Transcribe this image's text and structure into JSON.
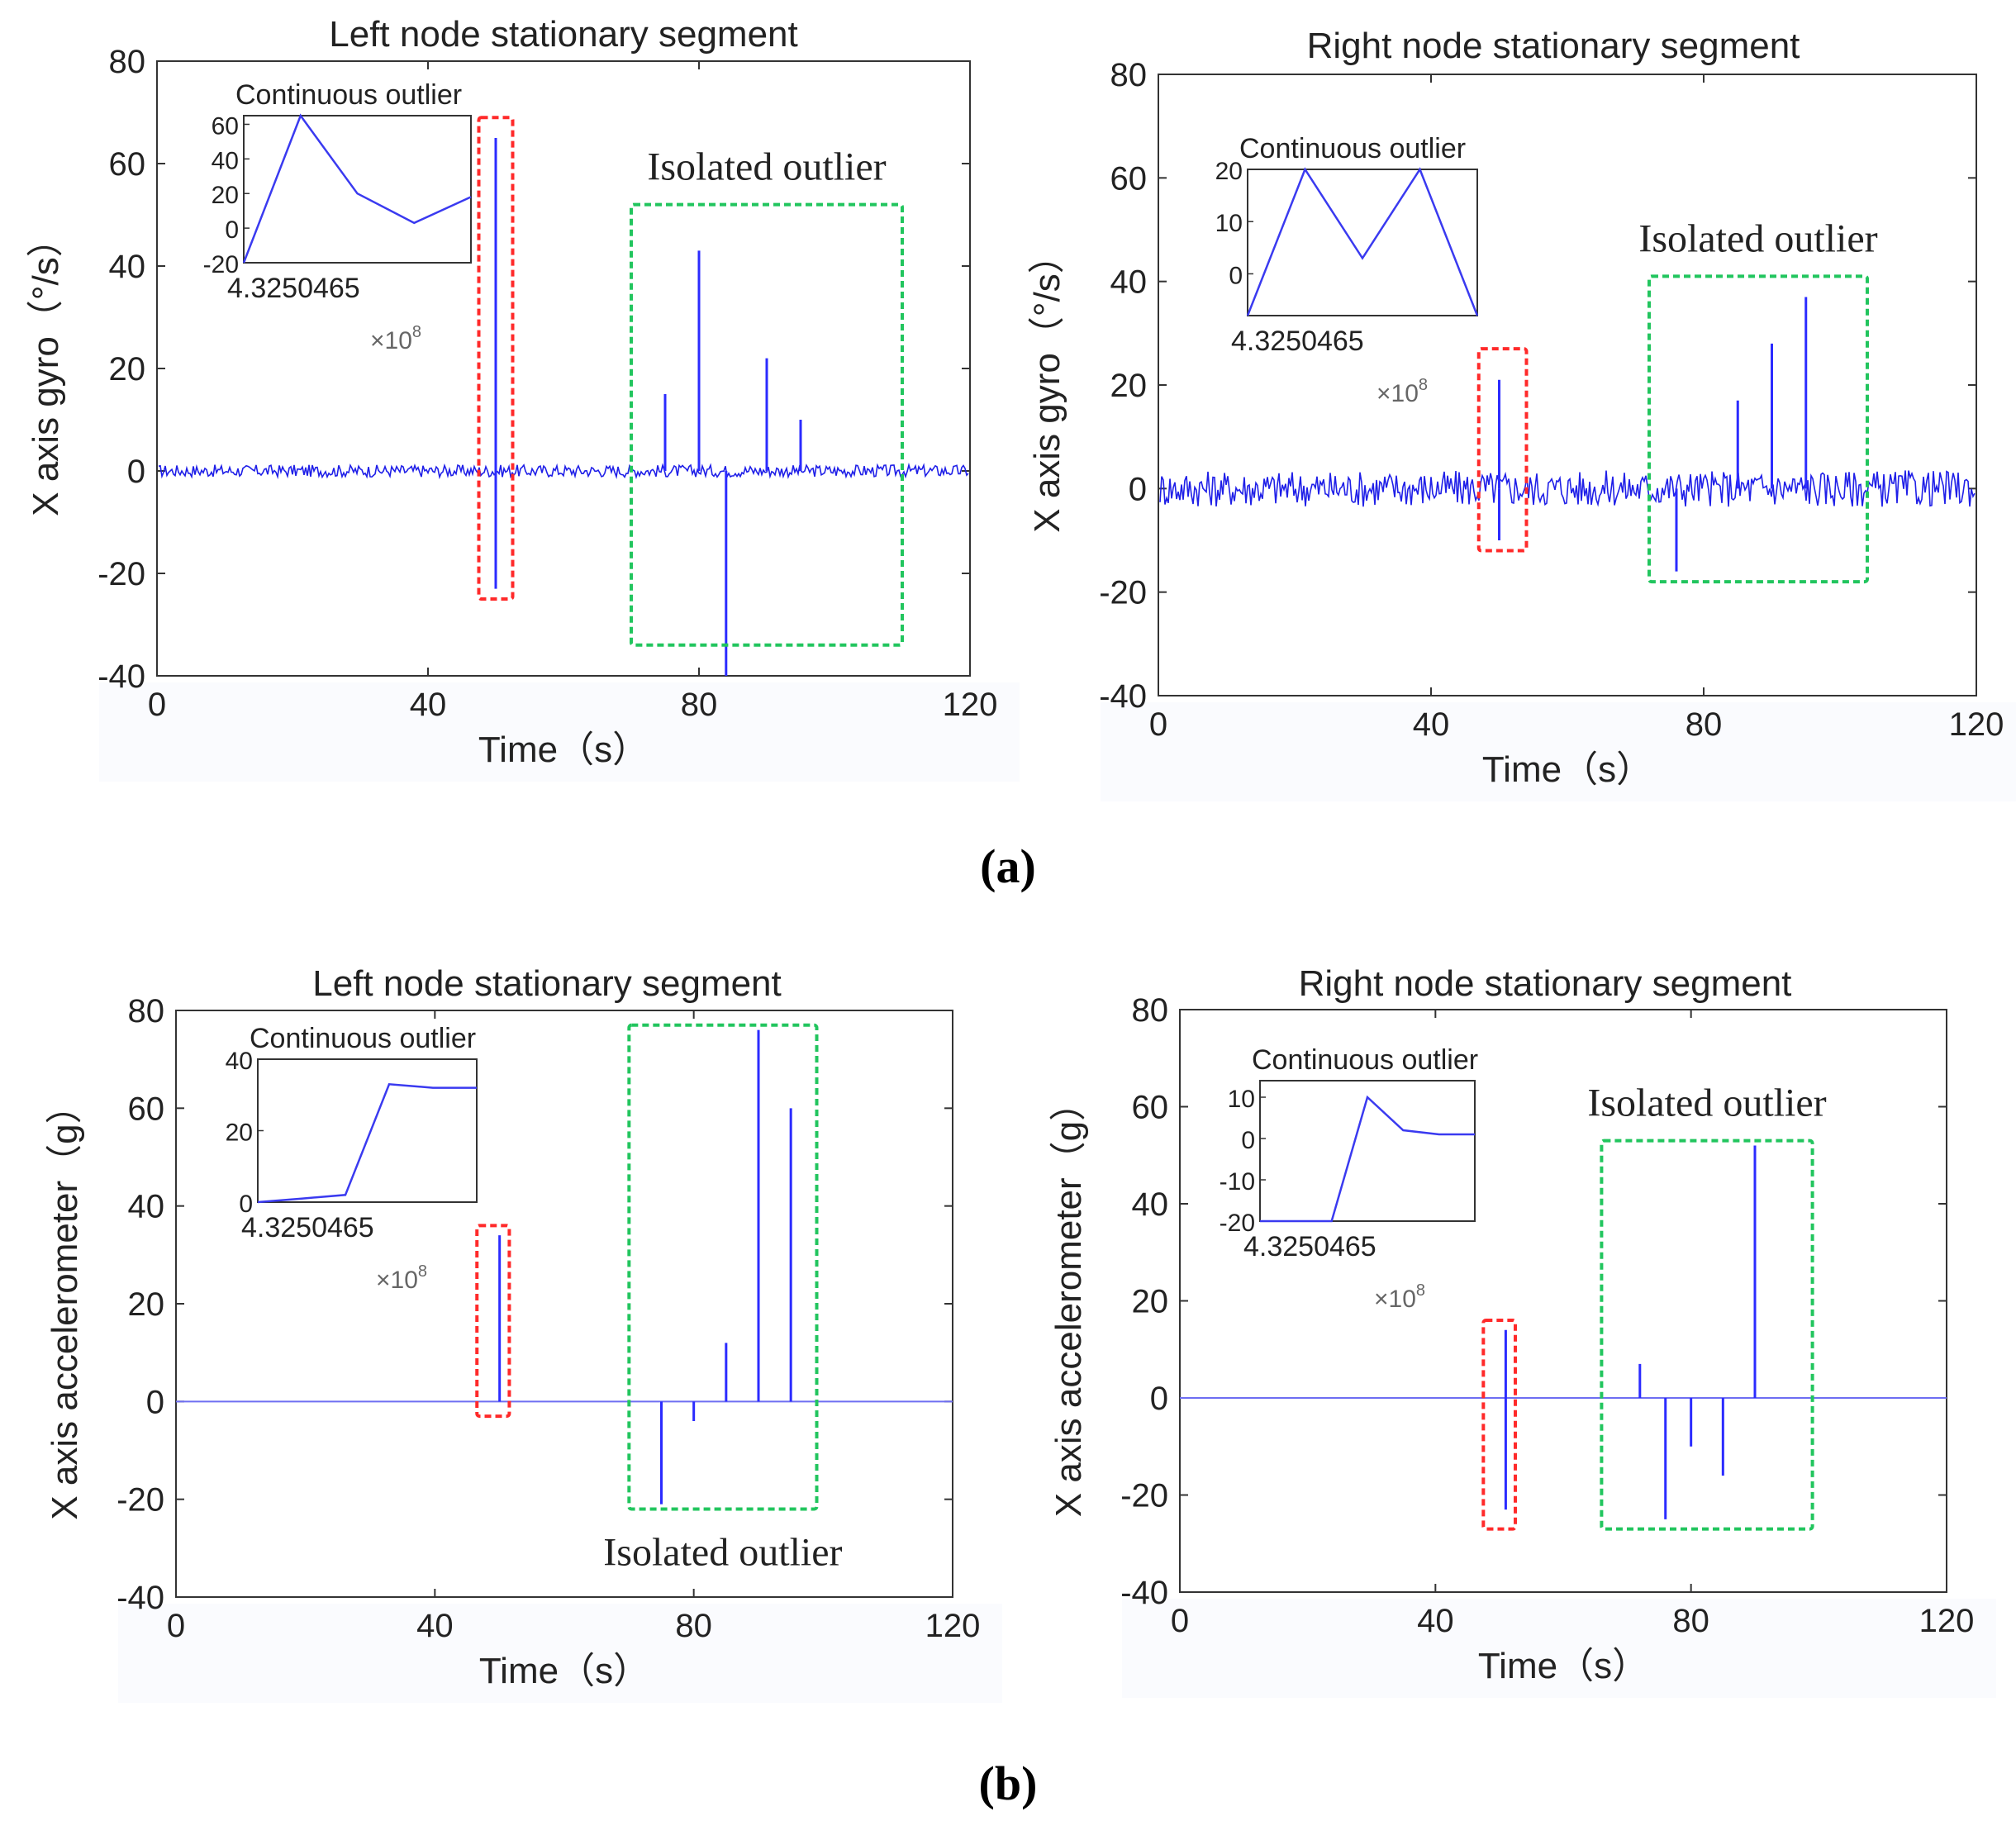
{
  "panel_labels": [
    "(a)",
    "(b)"
  ],
  "chart_data": [
    {
      "type": "line",
      "subtype": "spike-series",
      "title": "Left node stationary segment",
      "xlabel": "Time（s）",
      "ylabel": "X axis gyro（°/s）",
      "xlim": [
        0,
        120
      ],
      "ylim": [
        -40,
        80
      ],
      "xticks": [
        0,
        40,
        80,
        120
      ],
      "yticks": [
        -40,
        -20,
        0,
        20,
        40,
        60,
        80
      ],
      "series": [
        {
          "name": "X axis gyro",
          "noise_amplitude": 1.2,
          "spikes": [
            [
              50,
              65
            ],
            [
              50,
              -23
            ],
            [
              75,
              15
            ],
            [
              80,
              43
            ],
            [
              84,
              -40
            ],
            [
              90,
              22
            ],
            [
              95,
              10
            ]
          ]
        }
      ],
      "annotations": [
        {
          "label": "Isolated outlier",
          "color": "#22c55e",
          "x_range": [
            70,
            110
          ],
          "y_range": [
            -34,
            52
          ]
        },
        {
          "label": "",
          "color": "#ff2a2a",
          "x_range": [
            47.5,
            52.5
          ],
          "y_range": [
            -25,
            69
          ]
        }
      ],
      "inset": {
        "title": "Continuous outlier",
        "x_label": "4.3250465",
        "multiplier": "×10",
        "multiplier_exp": "8",
        "ylim": [
          -20,
          65
        ],
        "yticks": [
          -20,
          0,
          20,
          40,
          60
        ],
        "values": [
          -20,
          65,
          20,
          3,
          18
        ]
      }
    },
    {
      "type": "line",
      "subtype": "spike-series",
      "title": "Right node stationary segment",
      "xlabel": "Time（s）",
      "ylabel": "X axis gyro（°/s）",
      "xlim": [
        0,
        120
      ],
      "ylim": [
        -40,
        80
      ],
      "xticks": [
        0,
        40,
        80,
        120
      ],
      "yticks": [
        -40,
        -20,
        0,
        20,
        40,
        60,
        80
      ],
      "series": [
        {
          "name": "X axis gyro",
          "noise_amplitude": 3.5,
          "spikes": [
            [
              50,
              21
            ],
            [
              50,
              -10
            ],
            [
              76,
              -16
            ],
            [
              85,
              17
            ],
            [
              90,
              28
            ],
            [
              95,
              37
            ]
          ]
        }
      ],
      "annotations": [
        {
          "label": "Isolated outlier",
          "color": "#22c55e",
          "x_range": [
            72,
            104
          ],
          "y_range": [
            -18,
            41
          ]
        },
        {
          "label": "",
          "color": "#ff2a2a",
          "x_range": [
            47,
            54
          ],
          "y_range": [
            -12,
            27
          ]
        }
      ],
      "inset": {
        "title": "Continuous outlier",
        "x_label": "4.3250465",
        "multiplier": "×10",
        "multiplier_exp": "8",
        "ylim": [
          -8,
          20
        ],
        "yticks": [
          0,
          10,
          20
        ],
        "values": [
          -8,
          20,
          3,
          20,
          -8
        ]
      }
    },
    {
      "type": "line",
      "subtype": "spike-series",
      "title": "Left node stationary segment",
      "xlabel": "Time（s）",
      "ylabel": "X axis accelerometer（g）",
      "xlim": [
        0,
        120
      ],
      "ylim": [
        -40,
        80
      ],
      "xticks": [
        0,
        40,
        80,
        120
      ],
      "yticks": [
        -40,
        -20,
        0,
        20,
        40,
        60,
        80
      ],
      "series": [
        {
          "name": "X axis accelerometer",
          "noise_amplitude": 0,
          "spikes": [
            [
              50,
              34
            ],
            [
              75,
              -21
            ],
            [
              80,
              -4
            ],
            [
              85,
              12
            ],
            [
              90,
              76
            ],
            [
              95,
              60
            ]
          ]
        }
      ],
      "annotations": [
        {
          "label": "Isolated outlier",
          "color": "#22c55e",
          "x_range": [
            70,
            99
          ],
          "y_range": [
            -22,
            77
          ]
        },
        {
          "label": "",
          "color": "#ff2a2a",
          "x_range": [
            46.5,
            51.5
          ],
          "y_range": [
            -3,
            36
          ]
        }
      ],
      "inset": {
        "title": "Continuous outlier",
        "x_label": "4.3250465",
        "multiplier": "×10",
        "multiplier_exp": "8",
        "ylim": [
          0,
          40
        ],
        "yticks": [
          0,
          20,
          40
        ],
        "values": [
          0,
          1,
          2,
          33,
          32,
          32
        ]
      }
    },
    {
      "type": "line",
      "subtype": "spike-series",
      "title": "Right node stationary segment",
      "xlabel": "Time（s）",
      "ylabel": "X axis accelerometer（g）",
      "xlim": [
        0,
        120
      ],
      "ylim": [
        -40,
        80
      ],
      "xticks": [
        0,
        40,
        80,
        120
      ],
      "yticks": [
        -40,
        -20,
        0,
        20,
        40,
        60,
        80
      ],
      "series": [
        {
          "name": "X axis accelerometer",
          "noise_amplitude": 0,
          "spikes": [
            [
              51,
              14
            ],
            [
              51,
              -23
            ],
            [
              72,
              7
            ],
            [
              76,
              -25
            ],
            [
              80,
              -10
            ],
            [
              85,
              -16
            ],
            [
              90,
              52
            ]
          ]
        }
      ],
      "annotations": [
        {
          "label": "Isolated outlier",
          "color": "#22c55e",
          "x_range": [
            66,
            99
          ],
          "y_range": [
            -27,
            53
          ]
        },
        {
          "label": "",
          "color": "#ff2a2a",
          "x_range": [
            47.5,
            52.5
          ],
          "y_range": [
            -27,
            16
          ]
        }
      ],
      "inset": {
        "title": "Continuous outlier",
        "x_label": "4.3250465",
        "multiplier": "×10",
        "multiplier_exp": "8",
        "ylim": [
          -20,
          14
        ],
        "yticks": [
          -20,
          -10,
          0,
          10
        ],
        "values": [
          -20,
          -20,
          -20,
          10,
          2,
          1,
          1
        ]
      }
    }
  ]
}
